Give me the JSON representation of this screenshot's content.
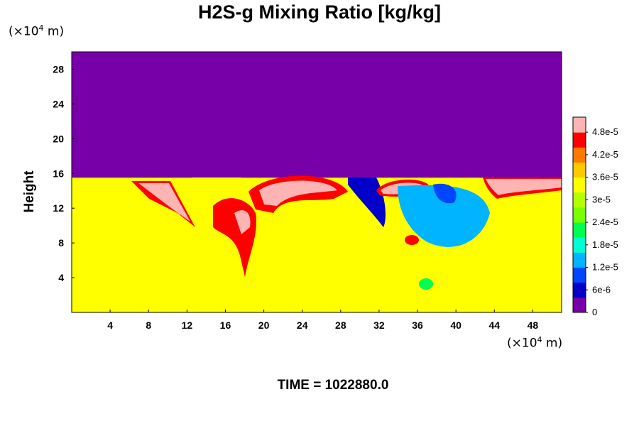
{
  "chart_data": {
    "type": "heatmap",
    "title": "H2S-g Mixing Ratio [kg/kg]",
    "ylabel": "Height",
    "xlabel": "",
    "x_unit": "(×10⁴ m)",
    "y_unit": "(×10⁴ m)",
    "x_range": [
      0,
      51
    ],
    "y_range": [
      0,
      30
    ],
    "x_ticks": [
      "4",
      "8",
      "12",
      "16",
      "20",
      "24",
      "28",
      "32",
      "36",
      "40",
      "44",
      "48"
    ],
    "y_ticks": [
      "4",
      "8",
      "12",
      "16",
      "20",
      "24",
      "28"
    ],
    "colorbar": {
      "range": [
        0,
        5.2e-05
      ],
      "tick_labels": [
        "0",
        "6e-6",
        "1.2e-5",
        "1.8e-5",
        "2.4e-5",
        "3e-5",
        "3.6e-5",
        "4.2e-5",
        "4.8e-5"
      ],
      "colors": [
        "#7800a8",
        "#0000c8",
        "#0046ff",
        "#00b4ff",
        "#00ffd2",
        "#00ff50",
        "#78ff00",
        "#b4ff00",
        "#ffff00",
        "#ffc800",
        "#ff7800",
        "#ff0000",
        "#ffb4b4"
      ]
    },
    "regions": {
      "upper_layer_value": 0,
      "lower_layer_value": 3.3e-05,
      "interface_height": 15.5
    },
    "footer": "TIME = 1022880.0"
  }
}
